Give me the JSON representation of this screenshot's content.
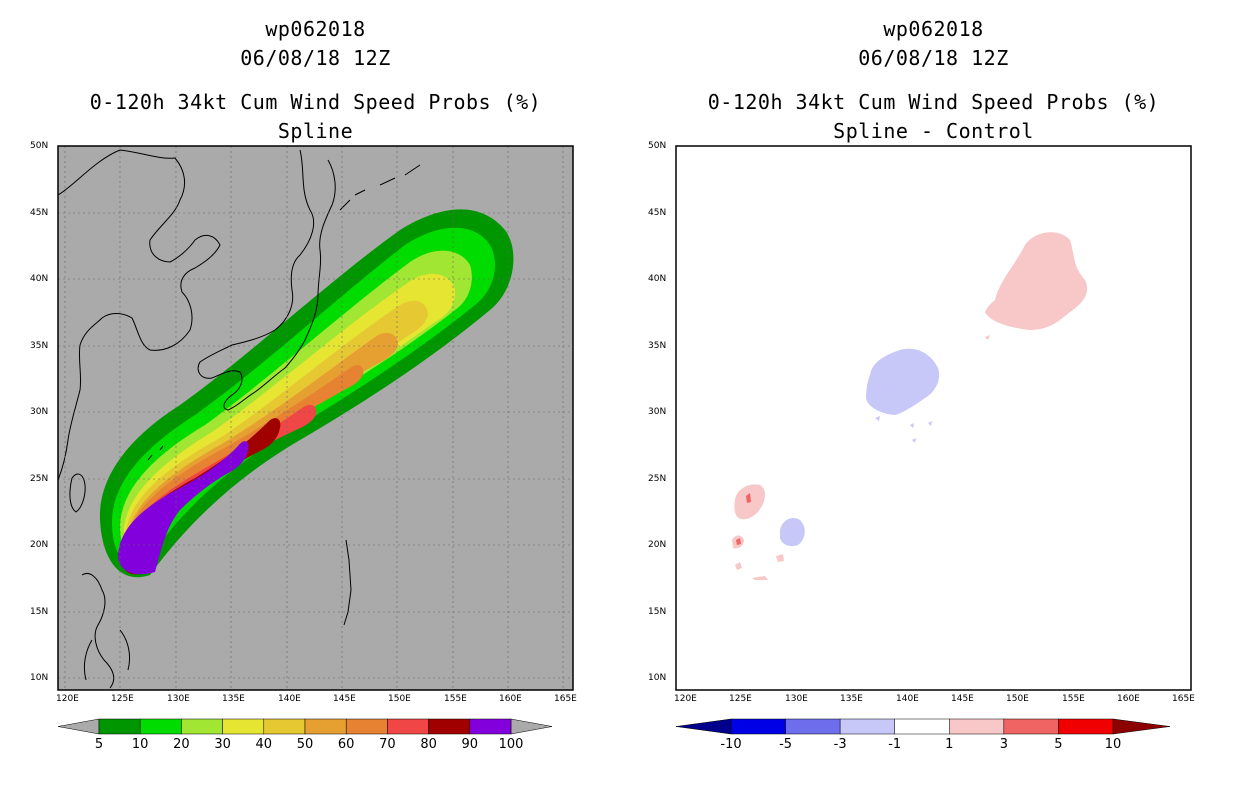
{
  "panels": [
    {
      "id": "left",
      "storm_id": "wp062018",
      "datetime": "06/08/18 12Z",
      "product": "0-120h 34kt Cum Wind Speed Probs (%)",
      "subtitle": "Spline",
      "colorbar_labels": [
        "5",
        "10",
        "20",
        "30",
        "40",
        "50",
        "60",
        "70",
        "80",
        "90",
        "100"
      ],
      "colorbar_colors": [
        "#009600",
        "#00dc00",
        "#a0e632",
        "#e6e632",
        "#e6c832",
        "#e6a032",
        "#e68232",
        "#f04646",
        "#a00000",
        "#8200dc"
      ],
      "background_color": "#aaaaaa"
    },
    {
      "id": "right",
      "storm_id": "wp062018",
      "datetime": "06/08/18 12Z",
      "product": "0-120h 34kt Cum Wind Speed Probs (%)",
      "subtitle": "Spline - Control",
      "colorbar_labels": [
        "-10",
        "-5",
        "-3",
        "-1",
        "1",
        "3",
        "5",
        "10"
      ],
      "colorbar_colors": [
        "#00008c",
        "#0000e6",
        "#6e6eec",
        "#c8c8f8",
        "#ffffff",
        "#f8c8c8",
        "#f06464",
        "#f00000",
        "#8c0000"
      ],
      "background_color": "#ffffff"
    }
  ],
  "axes": {
    "lon_labels": [
      "120E",
      "125E",
      "130E",
      "135E",
      "140E",
      "145E",
      "150E",
      "155E",
      "160E",
      "165E"
    ],
    "lat_labels": [
      "50N",
      "45N",
      "40N",
      "35N",
      "30N",
      "25N",
      "20N",
      "15N",
      "10N"
    ]
  }
}
